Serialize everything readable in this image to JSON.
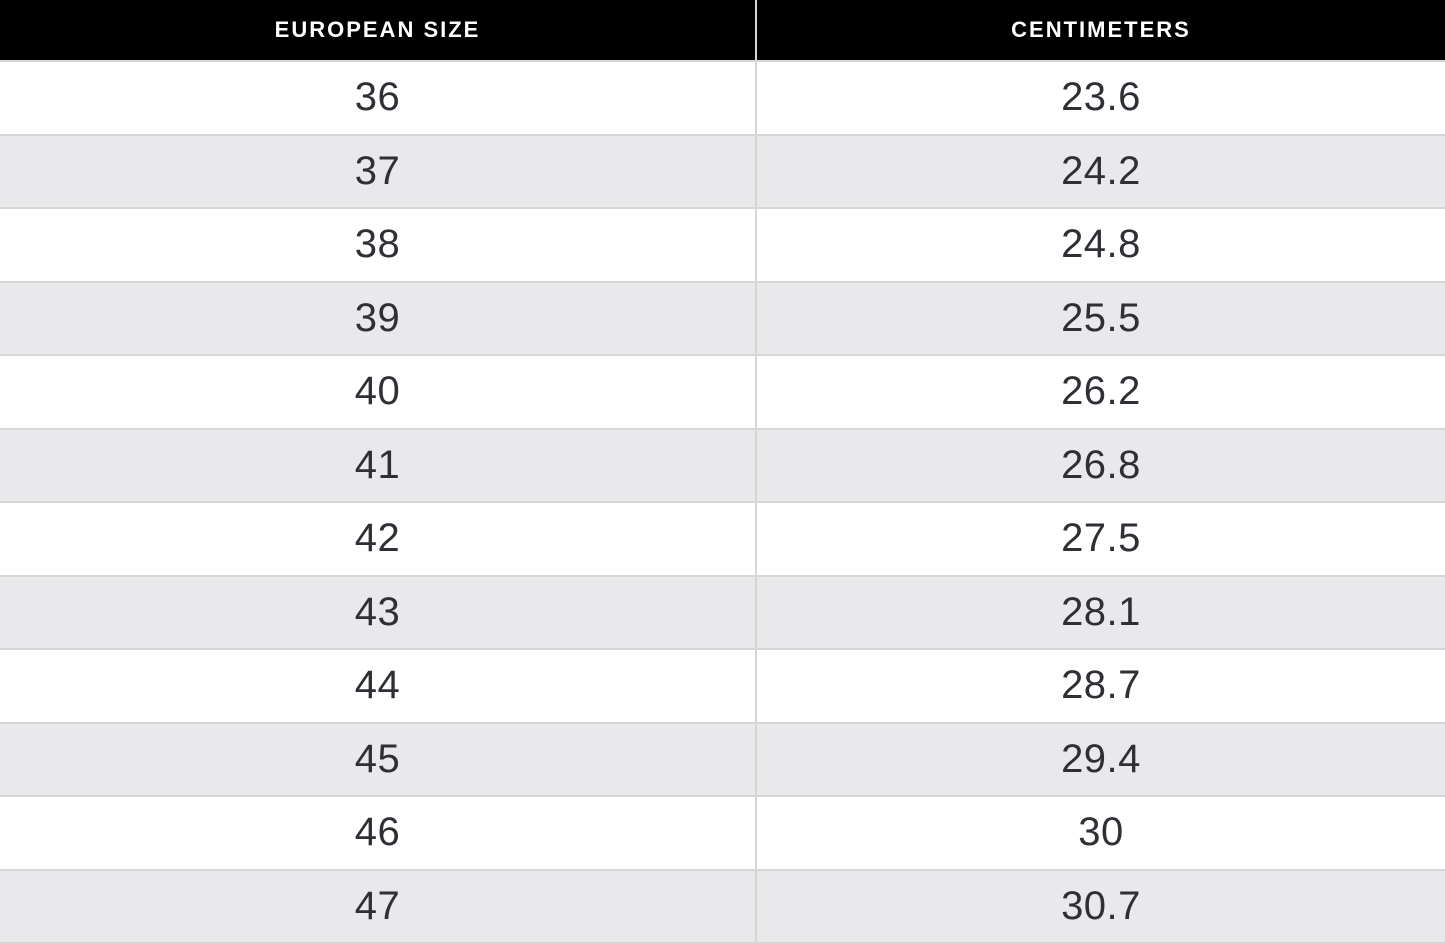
{
  "chart_data": {
    "type": "table",
    "columns": [
      "EUROPEAN SIZE",
      "CENTIMETERS"
    ],
    "rows": [
      [
        "36",
        "23.6"
      ],
      [
        "37",
        "24.2"
      ],
      [
        "38",
        "24.8"
      ],
      [
        "39",
        "25.5"
      ],
      [
        "40",
        "26.2"
      ],
      [
        "41",
        "26.8"
      ],
      [
        "42",
        "27.5"
      ],
      [
        "43",
        "28.1"
      ],
      [
        "44",
        "28.7"
      ],
      [
        "45",
        "29.4"
      ],
      [
        "46",
        "30"
      ],
      [
        "47",
        "30.7"
      ]
    ],
    "layout": {
      "header_style": "black-bar",
      "row_striping": "white-gray-alternating",
      "last_row_clipped": true
    }
  },
  "colors": {
    "header_bg": "#000000",
    "header_text": "#ffffff",
    "row_bg": "#ffffff",
    "row_alt_bg": "#e9e8ea",
    "border": "#d6d6d6",
    "cell_text": "#2f2f36"
  }
}
